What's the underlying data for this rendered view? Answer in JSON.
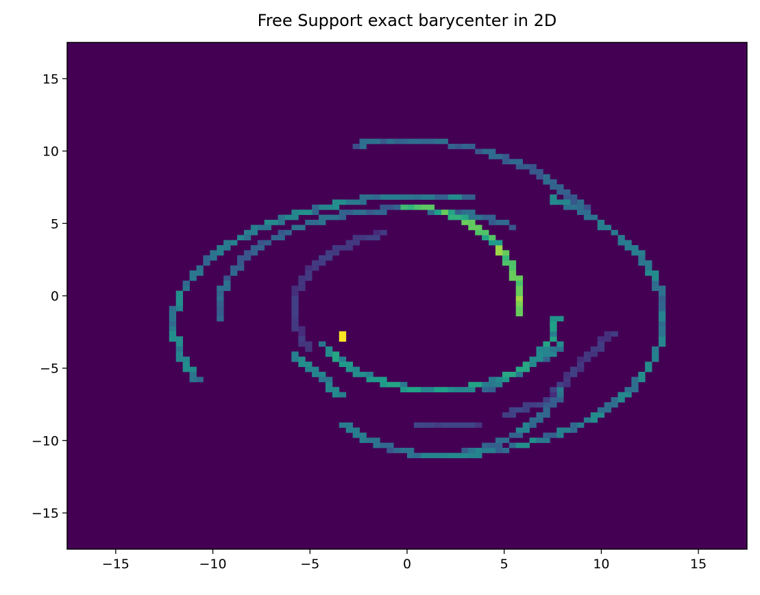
{
  "chart_data": {
    "type": "heatmap",
    "title": "Free Support exact barycenter in 2D",
    "xlabel": "",
    "ylabel": "",
    "xlim": [
      -17.5,
      17.5
    ],
    "ylim": [
      -17.5,
      17.5
    ],
    "xticks": [
      -15,
      -10,
      -5,
      0,
      5,
      10,
      15
    ],
    "yticks": [
      -15,
      -10,
      -5,
      0,
      5,
      10,
      15
    ],
    "xtick_labels": [
      "−15",
      "−10",
      "−5",
      "0",
      "5",
      "10",
      "15"
    ],
    "ytick_labels": [
      "−15",
      "−10",
      "−5",
      "0",
      "5",
      "10",
      "15"
    ],
    "bins": 100,
    "colormap": "viridis",
    "background_color": "#440154",
    "grid": false,
    "structures": [
      {
        "name": "outer-left-arc",
        "kind": "arc",
        "cx": 1.5,
        "cy": -2.0,
        "rx": 13.5,
        "ry": 9.0,
        "a0": 82,
        "a1": 205,
        "intensity": 0.45
      },
      {
        "name": "outer-top-arc",
        "kind": "arc",
        "cx": 0.0,
        "cy": 0.0,
        "rx": 11.0,
        "ry": 10.7,
        "a0": 30,
        "a1": 103,
        "intensity": 0.35
      },
      {
        "name": "outer-right-arc",
        "kind": "arc",
        "cx": 1.5,
        "cy": -1.5,
        "rx": 11.7,
        "ry": 9.5,
        "a0": -93,
        "a1": 60,
        "intensity": 0.45
      },
      {
        "name": "middle-upper-arc",
        "kind": "arc",
        "cx": 0.0,
        "cy": -1.0,
        "rx": 9.7,
        "ry": 7.0,
        "a0": 55,
        "a1": 185,
        "intensity": 0.35
      },
      {
        "name": "inner-c-arc",
        "kind": "arc",
        "cx": 0.2,
        "cy": -0.5,
        "rx": 5.6,
        "ry": 6.6,
        "a0": -5,
        "a1": 93,
        "intensity": 0.75
      },
      {
        "name": "inner-lower-arc",
        "kind": "arc",
        "cx": 1.5,
        "cy": -1.5,
        "rx": 6.2,
        "ry": 5.0,
        "a0": 200,
        "a1": 360,
        "intensity": 0.55
      },
      {
        "name": "left-inner-arc",
        "kind": "arc",
        "cx": 0.5,
        "cy": -1.0,
        "rx": 6.3,
        "ry": 5.5,
        "a0": 105,
        "a1": 210,
        "intensity": 0.18
      },
      {
        "name": "bottom-long-arc",
        "kind": "arc",
        "cx": 1.5,
        "cy": -2.0,
        "rx": 7.5,
        "ry": 9.0,
        "a0": 230,
        "a1": 330,
        "intensity": 0.4
      },
      {
        "name": "lower-left-segment",
        "kind": "line",
        "x0": -5.7,
        "y0": -4.2,
        "x1": -3.3,
        "y1": -7.0,
        "intensity": 0.45
      },
      {
        "name": "bottom-faint-segment",
        "kind": "line",
        "x0": 0.5,
        "y0": -8.9,
        "x1": 3.5,
        "y1": -8.9,
        "intensity": 0.2
      },
      {
        "name": "bottom-right-faint",
        "kind": "line",
        "x0": 5.0,
        "y0": -8.2,
        "x1": 8.0,
        "y1": -7.0,
        "intensity": 0.2
      },
      {
        "name": "right-faint-segment",
        "kind": "line",
        "x0": 7.5,
        "y0": -6.8,
        "x1": 10.5,
        "y1": -2.5,
        "intensity": 0.18
      },
      {
        "name": "lower-right-segment",
        "kind": "line",
        "x0": 4.0,
        "y0": -6.5,
        "x1": 8.0,
        "y1": -3.5,
        "intensity": 0.45
      },
      {
        "name": "bright-point",
        "kind": "point",
        "x": -3.3,
        "y": -2.8,
        "intensity": 1.0
      }
    ]
  }
}
